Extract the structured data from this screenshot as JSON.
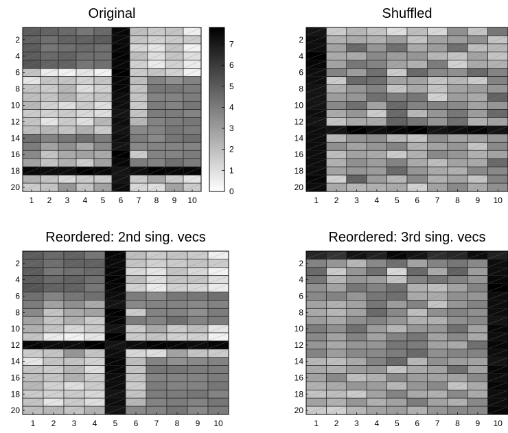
{
  "chart_data": [
    {
      "type": "heatmap",
      "title": "Original",
      "rows": 20,
      "cols": 10,
      "x_tick_labels": [
        "1",
        "2",
        "3",
        "4",
        "5",
        "6",
        "7",
        "8",
        "9",
        "10"
      ],
      "y_tick_labels": [
        "2",
        "4",
        "6",
        "8",
        "10",
        "12",
        "14",
        "16",
        "18",
        "20"
      ],
      "color_scale": "gray, white = 0, black = max",
      "matrix": [
        [
          5,
          4.8,
          4.6,
          4.2,
          4.6,
          7.6,
          2,
          1.6,
          1.8,
          0.5
        ],
        [
          4.8,
          4.4,
          4.8,
          4.8,
          5,
          7.5,
          1.8,
          1.4,
          1.6,
          1.6
        ],
        [
          5,
          4.2,
          4.4,
          4.6,
          4.4,
          7.6,
          1.2,
          0.8,
          1.8,
          0.4
        ],
        [
          5,
          4.6,
          4.8,
          4.4,
          4.4,
          7.7,
          2,
          1,
          1.8,
          1
        ],
        [
          5.2,
          4.8,
          4.8,
          4.2,
          4.4,
          7.6,
          1.4,
          0.6,
          1.4,
          0.6
        ],
        [
          1.8,
          0.6,
          0.4,
          0.8,
          0.4,
          7.8,
          1.6,
          1.8,
          1.4,
          0.4
        ],
        [
          0.8,
          1.8,
          1.8,
          1.4,
          1.8,
          7.6,
          2,
          3.8,
          3.4,
          3.8
        ],
        [
          1.8,
          1.6,
          2.2,
          1,
          1.4,
          7.6,
          1.8,
          4.2,
          4.2,
          4
        ],
        [
          2,
          1.8,
          2.4,
          1.6,
          1.8,
          7.4,
          1.8,
          3.8,
          3.8,
          4
        ],
        [
          2.2,
          1.4,
          1,
          1.6,
          1,
          7.4,
          1.6,
          4,
          3.8,
          4.2
        ],
        [
          1.6,
          1.4,
          1.6,
          1.2,
          1,
          7.2,
          1.8,
          4,
          4,
          3.8
        ],
        [
          1.8,
          0.8,
          1.6,
          1,
          2.2,
          7.4,
          2.2,
          3.8,
          4,
          4.2
        ],
        [
          2,
          2.2,
          1.8,
          2.4,
          1.6,
          7.2,
          3.6,
          3.8,
          4.2,
          4
        ],
        [
          4.4,
          3.8,
          4.2,
          4.4,
          4,
          7.4,
          4,
          3.6,
          4.2,
          4.4
        ],
        [
          4,
          2.8,
          3.4,
          2.6,
          3.6,
          7.2,
          3.6,
          3.8,
          3.8,
          3.8
        ],
        [
          3.6,
          1.8,
          2.6,
          2.8,
          2.6,
          7.8,
          1.6,
          3.8,
          3.8,
          4
        ],
        [
          2.8,
          1.8,
          2.4,
          1.6,
          2.8,
          7.6,
          4,
          3.8,
          4.4,
          4
        ],
        [
          7.6,
          7.4,
          7.4,
          7.8,
          7.6,
          7.2,
          7.4,
          7.7,
          7.6,
          7.6
        ],
        [
          2.4,
          1.8,
          1.2,
          1.6,
          1.6,
          7.2,
          1.6,
          2.6,
          1.6,
          0.8
        ],
        [
          1.6,
          1.8,
          3.2,
          1.8,
          2.8,
          7.4,
          1.2,
          1,
          2.8,
          1.6
        ]
      ],
      "colorbar": {
        "min": 0,
        "max": 7.8,
        "ticks": [
          0,
          1,
          2,
          3,
          4,
          5,
          6,
          7
        ]
      }
    },
    {
      "type": "heatmap",
      "title": "Shuffled",
      "rows": 20,
      "cols": 10,
      "x_tick_labels": [
        "1",
        "2",
        "3",
        "4",
        "5",
        "6",
        "7",
        "8",
        "9",
        "10"
      ],
      "y_tick_labels": [
        "2",
        "4",
        "6",
        "8",
        "10",
        "12",
        "14",
        "16",
        "18",
        "20"
      ],
      "matrix": [
        [
          7.2,
          1.6,
          2.2,
          1.8,
          1,
          2,
          1.2,
          3.4,
          1.8,
          4.2
        ],
        [
          7.4,
          2.4,
          2.6,
          2.4,
          3,
          1.8,
          2.8,
          3,
          3.4,
          1.8
        ],
        [
          7.4,
          2.8,
          4.6,
          3.2,
          4.4,
          2.6,
          3,
          4.4,
          2,
          2.2
        ],
        [
          7.8,
          2.6,
          2.6,
          3.6,
          3,
          3.2,
          2.2,
          1.8,
          2.8,
          1.8
        ],
        [
          7.6,
          2.8,
          4.2,
          3.8,
          2.8,
          2.4,
          4,
          1.4,
          2.6,
          2.4
        ],
        [
          7.4,
          3.8,
          3,
          4.4,
          1.6,
          4.6,
          3.6,
          3.4,
          4.6,
          3.8
        ],
        [
          7.4,
          1.6,
          4.6,
          4.4,
          2.8,
          2.8,
          1.8,
          2.2,
          1.6,
          3.8
        ],
        [
          7.2,
          2.4,
          3.2,
          3.8,
          1.8,
          2.6,
          1.8,
          2.8,
          3,
          3.2
        ],
        [
          7.2,
          3,
          3.2,
          4.4,
          4,
          4.2,
          1.4,
          3,
          2.6,
          4.8
        ],
        [
          7.2,
          3.6,
          4.4,
          2.8,
          4.6,
          3.8,
          3.8,
          3.6,
          2.8,
          3.2
        ],
        [
          7.4,
          2.6,
          3.2,
          1.6,
          4.6,
          2.2,
          3.2,
          4.2,
          3,
          4.6
        ],
        [
          7.2,
          1.8,
          2.6,
          2.6,
          4.8,
          4.2,
          3.2,
          4.4,
          2.4,
          2.8
        ],
        [
          7.4,
          7.2,
          7.8,
          7.4,
          7.6,
          7.8,
          7.2,
          7.4,
          7.6,
          7.2
        ],
        [
          7.4,
          2.2,
          3.2,
          3.4,
          2.2,
          1.8,
          3.4,
          2.8,
          2.8,
          3.2
        ],
        [
          7.4,
          3.4,
          2.8,
          3.2,
          3.8,
          2.4,
          2.8,
          3.2,
          1.8,
          3.6
        ],
        [
          7.4,
          2,
          2.8,
          2.6,
          1.6,
          2.4,
          3.6,
          3.2,
          2.4,
          2.8
        ],
        [
          7.4,
          2.4,
          3.4,
          3,
          3.8,
          2.6,
          2,
          2.8,
          2.6,
          4.6
        ],
        [
          7.4,
          2.8,
          3.2,
          3,
          4.6,
          3.2,
          2.6,
          2.4,
          3.6,
          3.6
        ],
        [
          7.6,
          1.4,
          4.8,
          3,
          2.2,
          3.6,
          2.4,
          2.8,
          1.8,
          3.8
        ],
        [
          7.4,
          2.6,
          2.2,
          2.4,
          2.6,
          1.4,
          2.8,
          3.6,
          2.6,
          3.4
        ]
      ]
    },
    {
      "type": "heatmap",
      "title": "Reordered: 2nd sing. vecs",
      "rows": 20,
      "cols": 10,
      "x_tick_labels": [
        "1",
        "2",
        "3",
        "4",
        "5",
        "6",
        "7",
        "8",
        "9",
        "10"
      ],
      "y_tick_labels": [
        "2",
        "4",
        "6",
        "8",
        "10",
        "12",
        "14",
        "16",
        "18",
        "20"
      ],
      "matrix": [
        [
          5,
          4.6,
          4.8,
          4.2,
          7.6,
          2,
          1.6,
          1.8,
          1.6,
          0.5
        ],
        [
          4.8,
          4.4,
          4.8,
          4.8,
          7.5,
          1.8,
          1.4,
          1.6,
          1.8,
          1.6
        ],
        [
          5,
          4.2,
          4.4,
          4.6,
          7.6,
          1.2,
          0.8,
          1.8,
          1.2,
          0.4
        ],
        [
          5,
          4.6,
          4.8,
          4.4,
          7.7,
          2,
          1,
          1.8,
          1.8,
          1
        ],
        [
          5.2,
          4.8,
          4.8,
          4.2,
          7.6,
          1.4,
          0.6,
          1.4,
          1.2,
          0.6
        ],
        [
          4.4,
          3.8,
          4.2,
          4.4,
          7.4,
          4,
          3.6,
          4.2,
          4.2,
          4.4
        ],
        [
          4,
          2.8,
          3.4,
          2.6,
          7.2,
          3.6,
          3.8,
          3.8,
          3.6,
          3.8
        ],
        [
          3.6,
          1.8,
          2.6,
          2.8,
          7.8,
          1.6,
          3.8,
          3.8,
          3.4,
          4
        ],
        [
          2.8,
          1.8,
          2.4,
          1.6,
          7.6,
          4,
          3.8,
          4.4,
          3.8,
          4
        ],
        [
          2.4,
          1.8,
          1.2,
          1.6,
          7.2,
          1.6,
          2.6,
          1.6,
          2,
          0.8
        ],
        [
          1.8,
          0.6,
          0.4,
          0.8,
          7.8,
          1.6,
          1.8,
          1.4,
          1.4,
          0.4
        ],
        [
          7.6,
          7.4,
          7.4,
          7.8,
          7.2,
          7.4,
          7.7,
          7.6,
          7.4,
          7.6
        ],
        [
          1.6,
          1.8,
          3.2,
          1.8,
          7.4,
          1.2,
          1,
          2.8,
          1.8,
          1.6
        ],
        [
          0.8,
          1.8,
          1.8,
          1.4,
          7.6,
          2,
          3.8,
          3.4,
          3.6,
          3.8
        ],
        [
          1.8,
          1.6,
          2.2,
          1,
          7.6,
          1.8,
          4.2,
          4.2,
          4,
          4
        ],
        [
          2,
          1.8,
          2.4,
          1.6,
          7.4,
          1.8,
          3.8,
          3.8,
          3.8,
          4
        ],
        [
          2.2,
          1.4,
          1,
          1.6,
          7.4,
          1.6,
          4,
          3.8,
          3.8,
          4.2
        ],
        [
          1.6,
          1.4,
          1.6,
          1.2,
          7.2,
          1.8,
          4,
          4,
          4.2,
          3.8
        ],
        [
          1.8,
          0.8,
          1.6,
          1,
          7.4,
          2.2,
          3.8,
          4,
          3.8,
          4.2
        ],
        [
          2,
          2.2,
          1.8,
          2.4,
          7.2,
          3.6,
          3.8,
          4.2,
          3.6,
          4
        ]
      ]
    },
    {
      "type": "heatmap",
      "title": "Reordered: 3rd sing. vecs",
      "rows": 20,
      "cols": 10,
      "x_tick_labels": [
        "1",
        "2",
        "3",
        "4",
        "5",
        "6",
        "7",
        "8",
        "9",
        "10"
      ],
      "y_tick_labels": [
        "2",
        "4",
        "6",
        "8",
        "10",
        "12",
        "14",
        "16",
        "18",
        "20"
      ],
      "matrix": [
        [
          6.6,
          6.2,
          7.2,
          6.8,
          7.6,
          7.2,
          6.4,
          6.6,
          7.4,
          6.8
        ],
        [
          3.8,
          3.2,
          2.2,
          3.6,
          4.4,
          2.8,
          3.8,
          4.2,
          3.6,
          7.4
        ],
        [
          4.6,
          1.6,
          3.2,
          4.4,
          1.2,
          4.6,
          2.6,
          4.8,
          3,
          7.4
        ],
        [
          4.2,
          2.2,
          3.2,
          3,
          1.8,
          3.8,
          4.2,
          3.8,
          3.2,
          7.6
        ],
        [
          3.4,
          2.8,
          4.2,
          3.8,
          4.4,
          2.4,
          2,
          2.8,
          3.8,
          7.8
        ],
        [
          3.6,
          3.8,
          3.2,
          4.2,
          4.4,
          2.6,
          2.6,
          3.4,
          3.2,
          7.4
        ],
        [
          2.8,
          2.4,
          2.8,
          4.2,
          3,
          3.8,
          1.8,
          3.2,
          3.8,
          7.4
        ],
        [
          2.6,
          2.2,
          2.8,
          4.6,
          3.6,
          2,
          3.4,
          3.8,
          3.4,
          7.4
        ],
        [
          3,
          2.6,
          3.4,
          3.8,
          3.2,
          2.4,
          2.4,
          3.4,
          3.6,
          7.2
        ],
        [
          4,
          3.4,
          4.4,
          3,
          2.2,
          3.2,
          3.2,
          4.4,
          2.8,
          7.6
        ],
        [
          3.6,
          2.8,
          3.8,
          2.8,
          3.8,
          4.2,
          2.8,
          3.6,
          2.6,
          7.4
        ],
        [
          3.2,
          2.6,
          3.2,
          3.2,
          4.2,
          4,
          2.8,
          2.6,
          4.4,
          7.6
        ],
        [
          3.8,
          3,
          3.6,
          3.6,
          4,
          4.6,
          3.4,
          3.8,
          3.8,
          7.4
        ],
        [
          2.2,
          2,
          2.6,
          3.8,
          4.6,
          2.2,
          3.4,
          3,
          2.8,
          7.2
        ],
        [
          2.6,
          2.4,
          3,
          3.2,
          1.8,
          2.6,
          2.8,
          4.4,
          2.8,
          7.6
        ],
        [
          2.8,
          3.6,
          2,
          2.4,
          3.6,
          3,
          2.8,
          2.8,
          3.6,
          7.4
        ],
        [
          2.4,
          2.6,
          3.2,
          3,
          2.2,
          3.2,
          3.6,
          1.8,
          2.6,
          7.6
        ],
        [
          1.8,
          2,
          1.6,
          2.8,
          3.8,
          2.6,
          2.4,
          3.6,
          2.6,
          7.4
        ],
        [
          2.8,
          2.4,
          3.2,
          2.4,
          2.8,
          4,
          2.8,
          2.4,
          3.6,
          7.4
        ],
        [
          1.6,
          1.4,
          2.2,
          2.8,
          3,
          2.4,
          3.2,
          3.6,
          3.6,
          7.6
        ]
      ]
    }
  ]
}
